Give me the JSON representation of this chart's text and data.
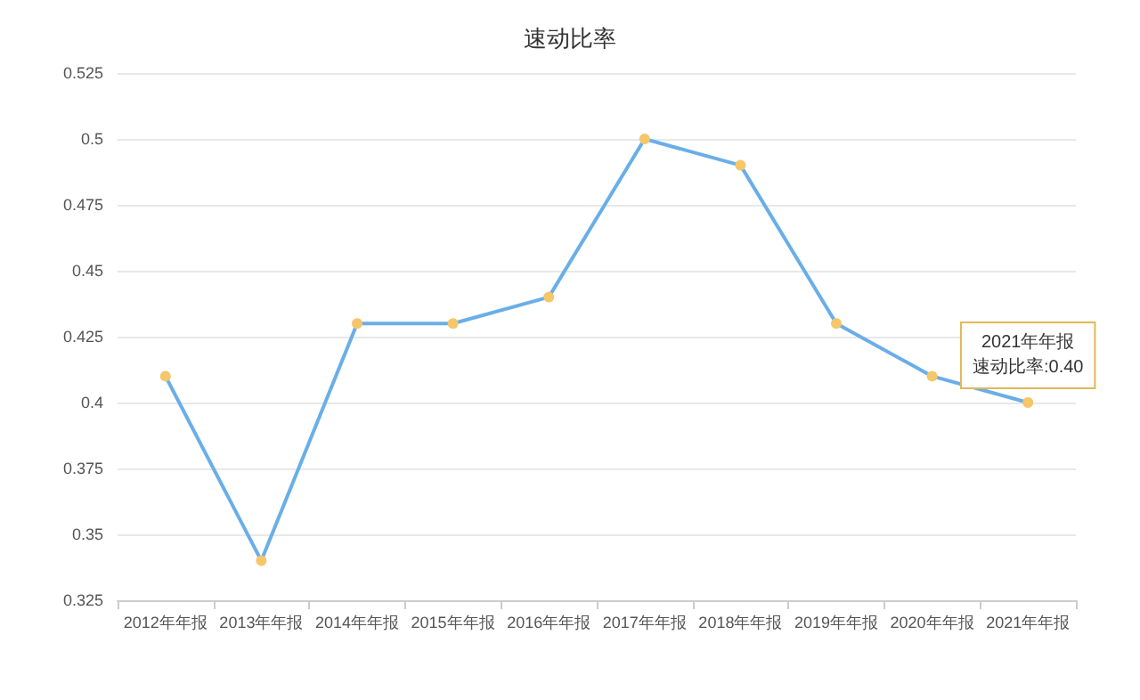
{
  "chart_data": {
    "type": "line",
    "title": "速动比率",
    "categories": [
      "2012年年报",
      "2013年年报",
      "2014年年报",
      "2015年年报",
      "2016年年报",
      "2017年年报",
      "2018年年报",
      "2019年年报",
      "2020年年报",
      "2021年年报"
    ],
    "series": [
      {
        "color": "#6aaee8",
        "colors": [
          "#f5c76a",
          "#f5c76a",
          "#f5c76a",
          "#f5c76a",
          "#f5c76a",
          "#f5c76a",
          "#f5c76a",
          "#f5c76a",
          "#f5c76a",
          "#f5c76a"
        ],
        "values": [
          0.41,
          0.34,
          0.43,
          0.43,
          0.44,
          0.5,
          0.49,
          0.43,
          0.41,
          0.4
        ]
      }
    ],
    "ylim": [
      0.325,
      0.525
    ],
    "yticks": [
      0.325,
      0.35,
      0.375,
      0.4,
      0.425,
      0.45,
      0.475,
      0.5,
      0.525
    ],
    "grid": "y",
    "marker": "circle",
    "line_style": "solid",
    "annotations": [
      {
        "text": "2021年年报",
        "x": "2021年年报",
        "y": 0.4
      },
      {
        "text": "速动比率:0.40",
        "x": "2021年年报",
        "y": 0.4
      }
    ]
  }
}
